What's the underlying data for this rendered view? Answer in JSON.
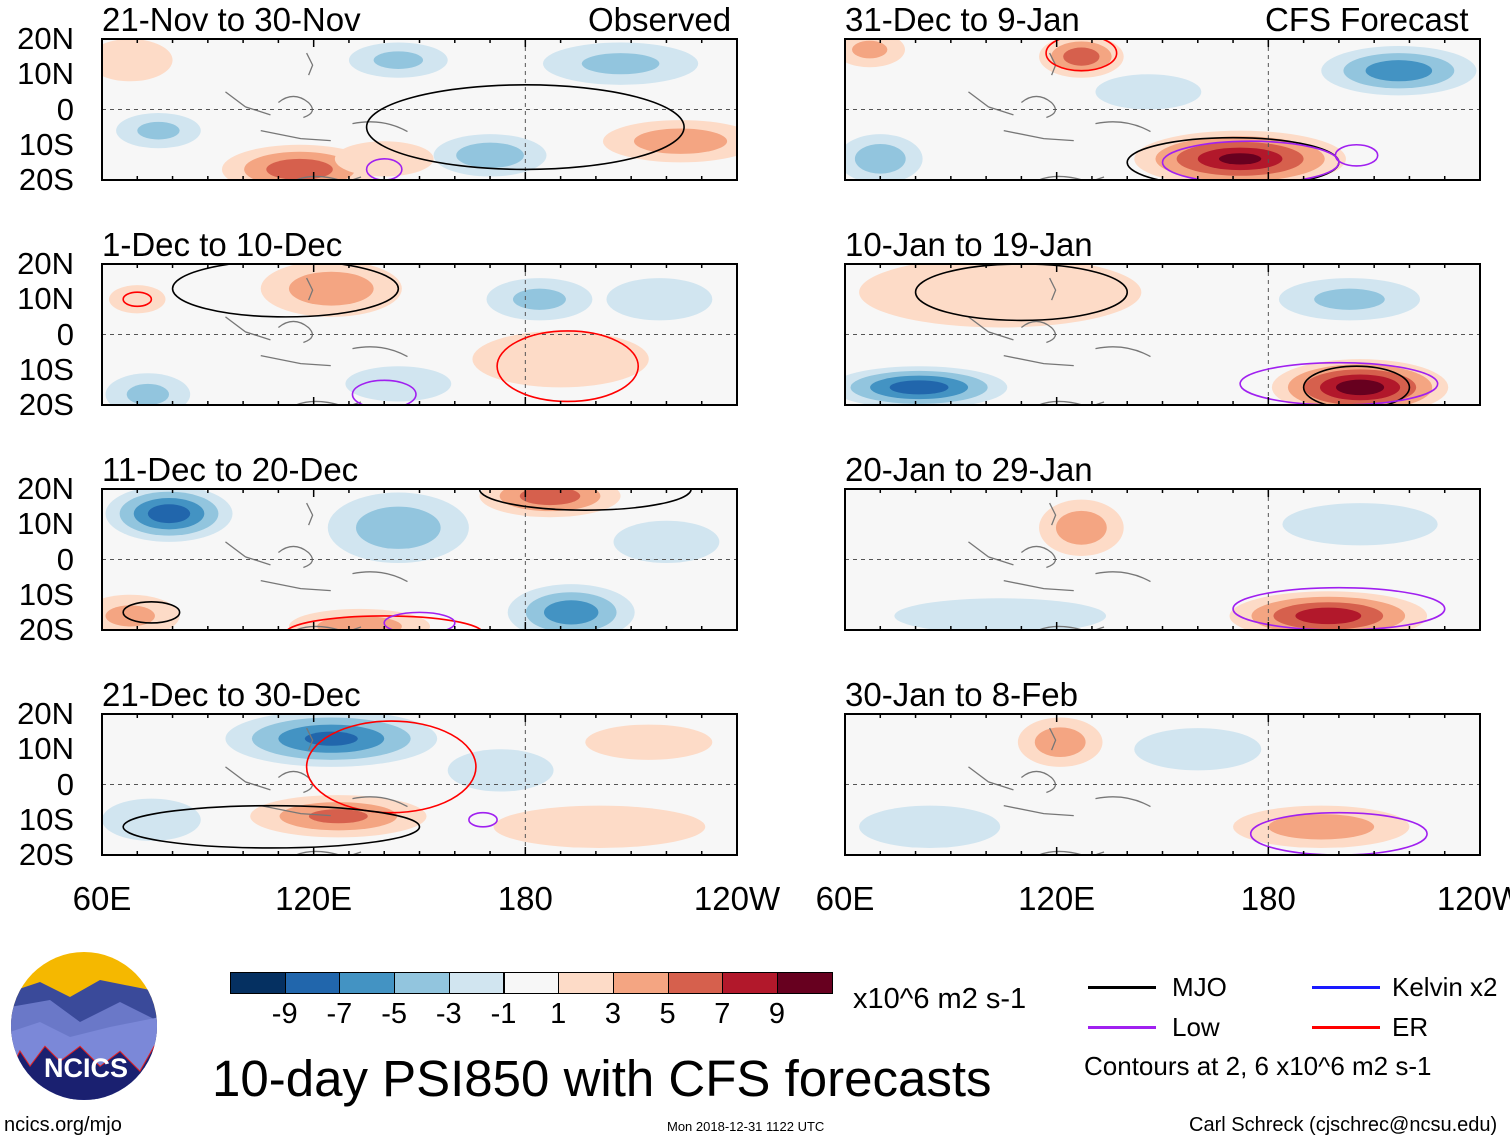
{
  "header": {
    "left_label": "Observed",
    "right_label": "CFS Forecast"
  },
  "title": "10-day PSI850 with CFS forecasts",
  "units": "x10^6 m2 s-1",
  "footer": {
    "url": "ncics.org/mjo",
    "timestamp": "Mon 2018-12-31 1122 UTC",
    "author": "Carl Schreck (cjschrec@ncsu.edu)"
  },
  "logo": {
    "text": "NCICS"
  },
  "legend": {
    "items": [
      {
        "label": "MJO",
        "color": "#000000"
      },
      {
        "label": "Kelvin x2",
        "color": "#1a1aff"
      },
      {
        "label": "Low",
        "color": "#a020f0"
      },
      {
        "label": "ER",
        "color": "#ff0000"
      }
    ],
    "note": "Contours at 2, 6 x10^6 m2 s-1"
  },
  "colorbar": {
    "colors": [
      "#053061",
      "#2166ac",
      "#4393c3",
      "#92c5de",
      "#d1e5f0",
      "#f7f7f7",
      "#fddbc7",
      "#f4a582",
      "#d6604d",
      "#b2182b",
      "#67001f"
    ],
    "labels": [
      "-9",
      "-7",
      "-5",
      "-3",
      "-1",
      "1",
      "3",
      "5",
      "7",
      "9"
    ]
  },
  "chart_data": {
    "type": "heatmap",
    "lat_ticks": [
      "20N",
      "10N",
      "0",
      "10S",
      "20S"
    ],
    "lon_ticks": [
      "60E",
      "120E",
      "180",
      "120W"
    ],
    "lon_range": [
      60,
      240
    ],
    "lat_range": [
      -20,
      20
    ],
    "panels": [
      {
        "title": "21-Nov to 30-Nov",
        "col": 0,
        "row": 0,
        "anomalies": [
          {
            "lon": 116,
            "lat": -17,
            "rlon": 22,
            "rlat": 7,
            "v": 6
          },
          {
            "lon": 76,
            "lat": -6,
            "rlon": 12,
            "rlat": 5,
            "v": -3
          },
          {
            "lon": 170,
            "lat": -13,
            "rlon": 16,
            "rlat": 6,
            "v": -4
          },
          {
            "lon": 224,
            "lat": -9,
            "rlon": 22,
            "rlat": 6,
            "v": 4
          },
          {
            "lon": 207,
            "lat": 13,
            "rlon": 22,
            "rlat": 6,
            "v": -3
          },
          {
            "lon": 144,
            "lat": 14,
            "rlon": 14,
            "rlat": 5,
            "v": -3
          },
          {
            "lon": 68,
            "lat": 14,
            "rlon": 12,
            "rlat": 6,
            "v": 2
          },
          {
            "lon": 140,
            "lat": -14,
            "rlon": 14,
            "rlat": 5,
            "v": 2
          }
        ],
        "contours": [
          {
            "type": "MJO",
            "lon": 180,
            "lat": -5,
            "rlon": 45,
            "rlat": 12
          },
          {
            "type": "Low",
            "lon": 140,
            "lat": -17,
            "rlon": 5,
            "rlat": 3
          }
        ]
      },
      {
        "title": "1-Dec to 10-Dec",
        "col": 0,
        "row": 1,
        "anomalies": [
          {
            "lon": 125,
            "lat": 13,
            "rlon": 20,
            "rlat": 8,
            "v": 4
          },
          {
            "lon": 190,
            "lat": -7,
            "rlon": 25,
            "rlat": 8,
            "v": 2
          },
          {
            "lon": 184,
            "lat": 10,
            "rlon": 15,
            "rlat": 6,
            "v": -3
          },
          {
            "lon": 73,
            "lat": -17,
            "rlon": 12,
            "rlat": 6,
            "v": -3
          },
          {
            "lon": 218,
            "lat": 10,
            "rlon": 15,
            "rlat": 6,
            "v": -2
          },
          {
            "lon": 144,
            "lat": -14,
            "rlon": 15,
            "rlat": 5,
            "v": -2
          },
          {
            "lon": 70,
            "lat": 10,
            "rlon": 8,
            "rlat": 4,
            "v": 2
          }
        ],
        "contours": [
          {
            "type": "MJO",
            "lon": 112,
            "lat": 13,
            "rlon": 32,
            "rlat": 8
          },
          {
            "type": "ER",
            "lon": 192,
            "lat": -9,
            "rlon": 20,
            "rlat": 10
          },
          {
            "type": "Low",
            "lon": 140,
            "lat": -17,
            "rlon": 9,
            "rlat": 4
          },
          {
            "type": "ER",
            "lon": 70,
            "lat": 10,
            "rlon": 4,
            "rlat": 2
          }
        ]
      },
      {
        "title": "11-Dec to 20-Dec",
        "col": 0,
        "row": 2,
        "anomalies": [
          {
            "lon": 79,
            "lat": 13,
            "rlon": 18,
            "rlat": 8,
            "v": -8
          },
          {
            "lon": 144,
            "lat": 9,
            "rlon": 20,
            "rlat": 10,
            "v": -4
          },
          {
            "lon": 193,
            "lat": -15,
            "rlon": 18,
            "rlat": 8,
            "v": -6
          },
          {
            "lon": 187,
            "lat": 18,
            "rlon": 20,
            "rlat": 6,
            "v": 6
          },
          {
            "lon": 68,
            "lat": -16,
            "rlon": 14,
            "rlat": 6,
            "v": 3
          },
          {
            "lon": 133,
            "lat": -19,
            "rlon": 20,
            "rlat": 5,
            "v": 4
          },
          {
            "lon": 220,
            "lat": 5,
            "rlon": 15,
            "rlat": 6,
            "v": -2
          }
        ],
        "contours": [
          {
            "type": "MJO",
            "lon": 197,
            "lat": 20,
            "rlon": 30,
            "rlat": 6
          },
          {
            "type": "ER",
            "lon": 140,
            "lat": -21,
            "rlon": 28,
            "rlat": 5
          },
          {
            "type": "Low",
            "lon": 150,
            "lat": -18,
            "rlon": 10,
            "rlat": 3
          },
          {
            "type": "MJO",
            "lon": 74,
            "lat": -15,
            "rlon": 8,
            "rlat": 3
          }
        ]
      },
      {
        "title": "21-Dec to 30-Dec",
        "col": 0,
        "row": 3,
        "anomalies": [
          {
            "lon": 125,
            "lat": 13,
            "rlon": 30,
            "rlat": 8,
            "v": -7
          },
          {
            "lon": 127,
            "lat": -9,
            "rlon": 25,
            "rlat": 6,
            "v": 5
          },
          {
            "lon": 201,
            "lat": -12,
            "rlon": 30,
            "rlat": 6,
            "v": 2
          },
          {
            "lon": 173,
            "lat": 4,
            "rlon": 15,
            "rlat": 6,
            "v": -2
          },
          {
            "lon": 74,
            "lat": -10,
            "rlon": 14,
            "rlat": 6,
            "v": -2
          },
          {
            "lon": 215,
            "lat": 12,
            "rlon": 18,
            "rlat": 5,
            "v": 2
          }
        ],
        "contours": [
          {
            "type": "ER",
            "lon": 142,
            "lat": 5,
            "rlon": 24,
            "rlat": 13
          },
          {
            "type": "MJO",
            "lon": 108,
            "lat": -12,
            "rlon": 42,
            "rlat": 6
          },
          {
            "type": "Low",
            "lon": 168,
            "lat": -10,
            "rlon": 4,
            "rlat": 2
          }
        ]
      },
      {
        "title": "31-Dec to 9-Jan",
        "col": 1,
        "row": 0,
        "anomalies": [
          {
            "lon": 172,
            "lat": -14,
            "rlon": 30,
            "rlat": 8,
            "v": 9
          },
          {
            "lon": 127,
            "lat": 15,
            "rlon": 12,
            "rlat": 6,
            "v": 6
          },
          {
            "lon": 217,
            "lat": 11,
            "rlon": 22,
            "rlat": 7,
            "v": -6
          },
          {
            "lon": 70,
            "lat": -14,
            "rlon": 12,
            "rlat": 7,
            "v": -4
          },
          {
            "lon": 146,
            "lat": 5,
            "rlon": 15,
            "rlat": 5,
            "v": -2
          },
          {
            "lon": 67,
            "lat": 17,
            "rlon": 10,
            "rlat": 5,
            "v": 3
          }
        ],
        "contours": [
          {
            "type": "MJO",
            "lon": 170,
            "lat": -15,
            "rlon": 30,
            "rlat": 7
          },
          {
            "type": "ER",
            "lon": 127,
            "lat": 16,
            "rlon": 10,
            "rlat": 5
          },
          {
            "type": "Low",
            "lon": 205,
            "lat": -13,
            "rlon": 6,
            "rlat": 3
          },
          {
            "type": "Low",
            "lon": 175,
            "lat": -15,
            "rlon": 25,
            "rlat": 6
          }
        ]
      },
      {
        "title": "10-Jan to 19-Jan",
        "col": 1,
        "row": 1,
        "anomalies": [
          {
            "lon": 206,
            "lat": -15,
            "rlon": 25,
            "rlat": 8,
            "v": 10
          },
          {
            "lon": 81,
            "lat": -15,
            "rlon": 25,
            "rlat": 6,
            "v": -8
          },
          {
            "lon": 104,
            "lat": 12,
            "rlon": 40,
            "rlat": 10,
            "v": 2
          },
          {
            "lon": 203,
            "lat": 10,
            "rlon": 20,
            "rlat": 6,
            "v": -3
          }
        ],
        "contours": [
          {
            "type": "MJO",
            "lon": 205,
            "lat": -15,
            "rlon": 15,
            "rlat": 6
          },
          {
            "type": "MJO",
            "lon": 110,
            "lat": 12,
            "rlon": 30,
            "rlat": 8
          },
          {
            "type": "Low",
            "lon": 200,
            "lat": -14,
            "rlon": 28,
            "rlat": 6
          }
        ]
      },
      {
        "title": "20-Jan to 29-Jan",
        "col": 1,
        "row": 2,
        "anomalies": [
          {
            "lon": 197,
            "lat": -16,
            "rlon": 28,
            "rlat": 7,
            "v": 8
          },
          {
            "lon": 127,
            "lat": 9,
            "rlon": 12,
            "rlat": 8,
            "v": 4
          },
          {
            "lon": 104,
            "lat": -16,
            "rlon": 30,
            "rlat": 5,
            "v": -2
          },
          {
            "lon": 206,
            "lat": 10,
            "rlon": 22,
            "rlat": 6,
            "v": -2
          }
        ],
        "contours": [
          {
            "type": "Low",
            "lon": 200,
            "lat": -14,
            "rlon": 30,
            "rlat": 6
          }
        ]
      },
      {
        "title": "30-Jan to 8-Feb",
        "col": 1,
        "row": 3,
        "anomalies": [
          {
            "lon": 121,
            "lat": 12,
            "rlon": 12,
            "rlat": 7,
            "v": 4
          },
          {
            "lon": 195,
            "lat": -12,
            "rlon": 25,
            "rlat": 6,
            "v": 4
          },
          {
            "lon": 84,
            "lat": -12,
            "rlon": 20,
            "rlat": 6,
            "v": -2
          },
          {
            "lon": 160,
            "lat": 10,
            "rlon": 18,
            "rlat": 6,
            "v": -2
          }
        ],
        "contours": [
          {
            "type": "Low",
            "lon": 200,
            "lat": -14,
            "rlon": 25,
            "rlat": 6
          }
        ]
      }
    ]
  }
}
